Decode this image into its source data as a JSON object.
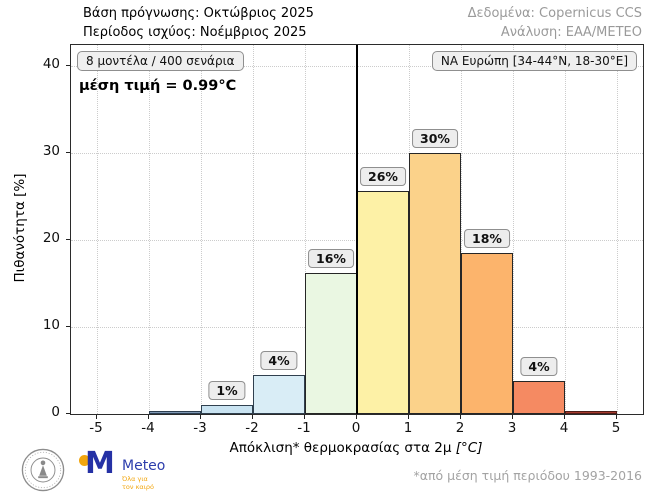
{
  "header": {
    "line1": "Βάση πρόγνωσης: Οκτώβριος 2025",
    "line2": "Περίοδος ισχύος: Νοέμβριος 2025",
    "right1": "Δεδομένα: Copernicus CCS",
    "right2": "Ανάλυση: ΕΑΑ/ΜΕΤΕΟ"
  },
  "annotations": {
    "models_box": "8 μοντέλα / 400 σενάρια",
    "mean_text": "μέση τιμή = 0.99°C",
    "region_box": "ΝΑ Ευρώπη [34-44°N, 18-30°E]"
  },
  "footer": {
    "note": "*από μέση τιμή περιόδου 1993-2016"
  },
  "logos": {
    "meteo_name": "Meteo",
    "meteo_tagline1": "Όλα για",
    "meteo_tagline2": "τον καιρό"
  },
  "chart_data": {
    "type": "bar",
    "title": "",
    "xlabel": "Απόκλιση* θερμοκρασίας στα 2μ",
    "xlabel_unit": "[°C]",
    "ylabel": "Πιθανότητα [%]",
    "xlim": [
      -5.5,
      5.5
    ],
    "ylim": [
      0,
      42.4
    ],
    "x_ticks": [
      -5,
      -4,
      -3,
      -2,
      -1,
      0,
      1,
      2,
      3,
      4,
      5
    ],
    "y_ticks": [
      0,
      10,
      20,
      30,
      40
    ],
    "grid": "dotted",
    "zero_line_x": 0,
    "legend": "none",
    "bins": [
      {
        "range": [
          -4,
          -3
        ],
        "value": 0.3,
        "label": "",
        "fill": "#7f98b4",
        "edge": "#2c3e50"
      },
      {
        "range": [
          -3,
          -2
        ],
        "value": 1.0,
        "label": "1%",
        "fill": "#c9e3f1",
        "edge": "#30404f"
      },
      {
        "range": [
          -2,
          -1
        ],
        "value": 4.5,
        "label": "4%",
        "fill": "#d9edf6",
        "edge": "#30404f"
      },
      {
        "range": [
          -1,
          0
        ],
        "value": 16.2,
        "label": "16%",
        "fill": "#eaf7e2",
        "edge": "#262626"
      },
      {
        "range": [
          0,
          1
        ],
        "value": 25.6,
        "label": "26%",
        "fill": "#fdf1a6",
        "edge": "#262626"
      },
      {
        "range": [
          1,
          2
        ],
        "value": 30.0,
        "label": "30%",
        "fill": "#fbd28a",
        "edge": "#262626"
      },
      {
        "range": [
          2,
          3
        ],
        "value": 18.5,
        "label": "18%",
        "fill": "#fcb46c",
        "edge": "#262626"
      },
      {
        "range": [
          3,
          4
        ],
        "value": 3.8,
        "label": "4%",
        "fill": "#f58a62",
        "edge": "#262626"
      },
      {
        "range": [
          4,
          5
        ],
        "value": 0.3,
        "label": "",
        "fill": "#a63a2e",
        "edge": "#4f1d18"
      }
    ]
  }
}
